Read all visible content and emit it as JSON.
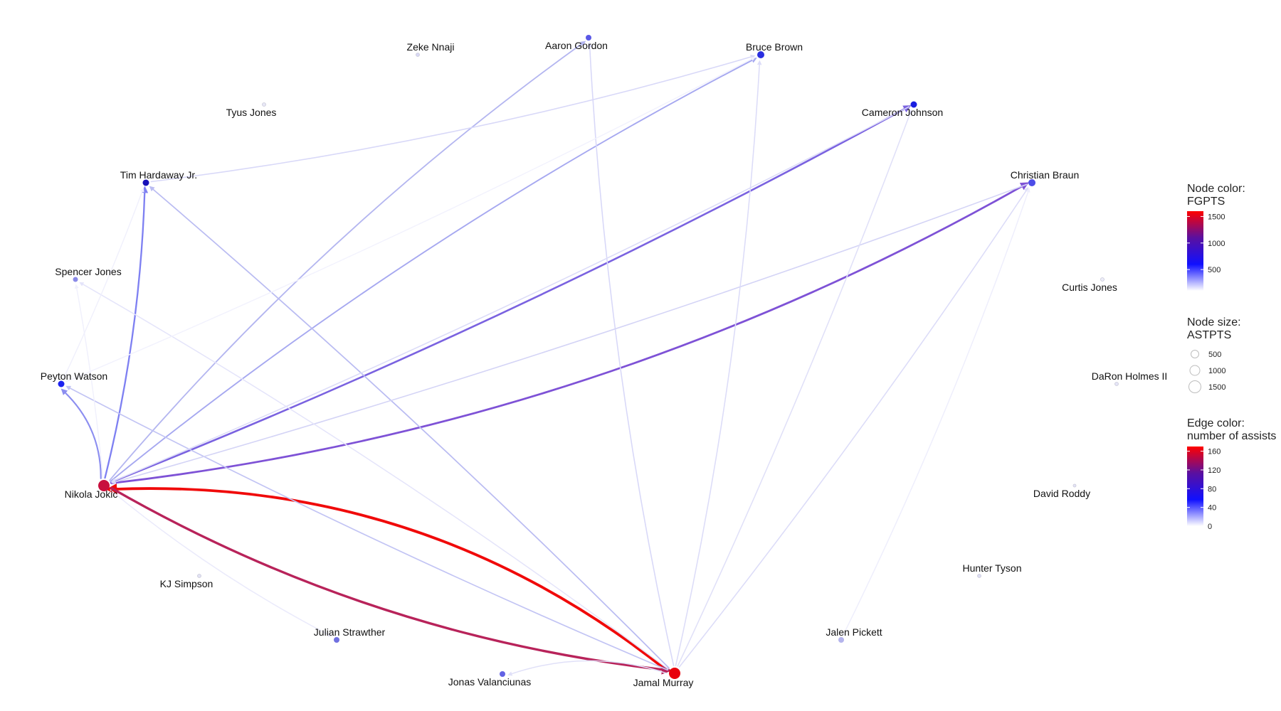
{
  "network": {
    "nodes": [
      {
        "id": "jokic",
        "label": "Nikola Jokic",
        "color": "#c8103e"
      },
      {
        "id": "murray",
        "label": "Jamal Murray",
        "color": "#e8000c"
      },
      {
        "id": "gordon",
        "label": "Aaron Gordon",
        "color": "#5a58e6"
      },
      {
        "id": "brown",
        "label": "Bruce Brown",
        "color": "#2a2ee0"
      },
      {
        "id": "cjohnson",
        "label": "Cameron Johnson",
        "color": "#1a1ee0"
      },
      {
        "id": "braun",
        "label": "Christian Braun",
        "color": "#4d4de8"
      },
      {
        "id": "hardaway",
        "label": "Tim Hardaway Jr.",
        "color": "#1710b8"
      },
      {
        "id": "sjones",
        "label": "Spencer Jones",
        "color": "#8a8ae8"
      },
      {
        "id": "watson",
        "label": "Peyton Watson",
        "color": "#1c22f0"
      },
      {
        "id": "nnaji",
        "label": "Zeke Nnaji",
        "color": "#d8d8f4"
      },
      {
        "id": "tjones",
        "label": "Tyus Jones",
        "color": "#e8e8f6"
      },
      {
        "id": "cjones",
        "label": "Curtis Jones",
        "color": "#ececf8"
      },
      {
        "id": "holmes",
        "label": "DaRon Holmes II",
        "color": "#e4e4f6"
      },
      {
        "id": "roddy",
        "label": "David Roddy",
        "color": "#e4e4f6"
      },
      {
        "id": "tyson",
        "label": "Hunter Tyson",
        "color": "#dcdcf2"
      },
      {
        "id": "pickett",
        "label": "Jalen Pickett",
        "color": "#b4b4ec"
      },
      {
        "id": "valanciunas",
        "label": "Jonas Valanciunas",
        "color": "#6262e4"
      },
      {
        "id": "strawther",
        "label": "Julian Strawther",
        "color": "#7070e0"
      },
      {
        "id": "simpson",
        "label": "KJ Simpson",
        "color": "#e2e2f4"
      }
    ],
    "edges": [
      {
        "from": "murray",
        "to": "jokic",
        "assists": 165,
        "color": "#f00a0a"
      },
      {
        "from": "jokic",
        "to": "murray",
        "assists": 135,
        "color": "#b8235a"
      },
      {
        "from": "jokic",
        "to": "braun",
        "assists": 95,
        "color": "#7e52d6"
      },
      {
        "from": "jokic",
        "to": "cjohnson",
        "assists": 82,
        "color": "#7a62e0"
      },
      {
        "from": "jokic",
        "to": "hardaway",
        "assists": 64,
        "color": "#7e80f2"
      },
      {
        "from": "jokic",
        "to": "watson",
        "assists": 52,
        "color": "#8c8ef0"
      },
      {
        "from": "jokic",
        "to": "brown",
        "assists": 34,
        "color": "#a6a8f0"
      },
      {
        "from": "jokic",
        "to": "gordon",
        "assists": 28,
        "color": "#b4b6f0"
      },
      {
        "from": "murray",
        "to": "hardaway",
        "assists": 24,
        "color": "#babcf2"
      },
      {
        "from": "murray",
        "to": "watson",
        "assists": 20,
        "color": "#c2c4f4"
      },
      {
        "from": "hardaway",
        "to": "brown",
        "assists": 12,
        "color": "#d8d8f8"
      },
      {
        "from": "murray",
        "to": "gordon",
        "assists": 12,
        "color": "#d8d8f8"
      },
      {
        "from": "braun",
        "to": "jokic",
        "assists": 14,
        "color": "#d4d4f6"
      },
      {
        "from": "cjohnson",
        "to": "jokic",
        "assists": 10,
        "color": "#dcdcf8"
      },
      {
        "from": "murray",
        "to": "brown",
        "assists": 10,
        "color": "#dcdcf8"
      },
      {
        "from": "murray",
        "to": "cjohnson",
        "assists": 9,
        "color": "#e0e0f8"
      },
      {
        "from": "murray",
        "to": "braun",
        "assists": 10,
        "color": "#dcdcf8"
      },
      {
        "from": "murray",
        "to": "valanciunas",
        "assists": 9,
        "color": "#e0e0f8"
      },
      {
        "from": "murray",
        "to": "sjones",
        "assists": 7,
        "color": "#e4e4fa"
      },
      {
        "from": "pickett",
        "to": "braun",
        "assists": 4,
        "color": "#eeeefc"
      },
      {
        "from": "jokic",
        "to": "strawther",
        "assists": 5,
        "color": "#eaeafb"
      },
      {
        "from": "watson",
        "to": "hardaway",
        "assists": 3,
        "color": "#f0f0fc"
      },
      {
        "from": "jokic",
        "to": "sjones",
        "assists": 3,
        "color": "#f0f0fc"
      },
      {
        "from": "watson",
        "to": "brown",
        "assists": 2,
        "color": "#f2f2fd"
      }
    ]
  },
  "legend": {
    "node_color": {
      "title_line1": "Node color:",
      "title_line2": "FGPTS",
      "colors": [
        "#ff0000",
        "#5a10a0",
        "#1010ff",
        "#ffffff"
      ],
      "ticks": [
        {
          "label": "1500",
          "value": 1500
        },
        {
          "label": "1000",
          "value": 1000
        },
        {
          "label": "500",
          "value": 500
        }
      ],
      "min": 100,
      "max": 1600
    },
    "node_size": {
      "title_line1": "Node size:",
      "title_line2": "ASTPTS",
      "items": [
        {
          "label": "500",
          "value": 500
        },
        {
          "label": "1000",
          "value": 1000
        },
        {
          "label": "1500",
          "value": 1500
        }
      ]
    },
    "edge_color": {
      "title_line1": "Edge color:",
      "title_line2": "number of assists",
      "colors": [
        "#ff0000",
        "#5a10a0",
        "#1010ff",
        "#ffffff"
      ],
      "ticks": [
        {
          "label": "160",
          "value": 160
        },
        {
          "label": "120",
          "value": 120
        },
        {
          "label": "80",
          "value": 80
        },
        {
          "label": "40",
          "value": 40
        },
        {
          "label": "0",
          "value": 0
        }
      ],
      "min": 0,
      "max": 170
    }
  }
}
